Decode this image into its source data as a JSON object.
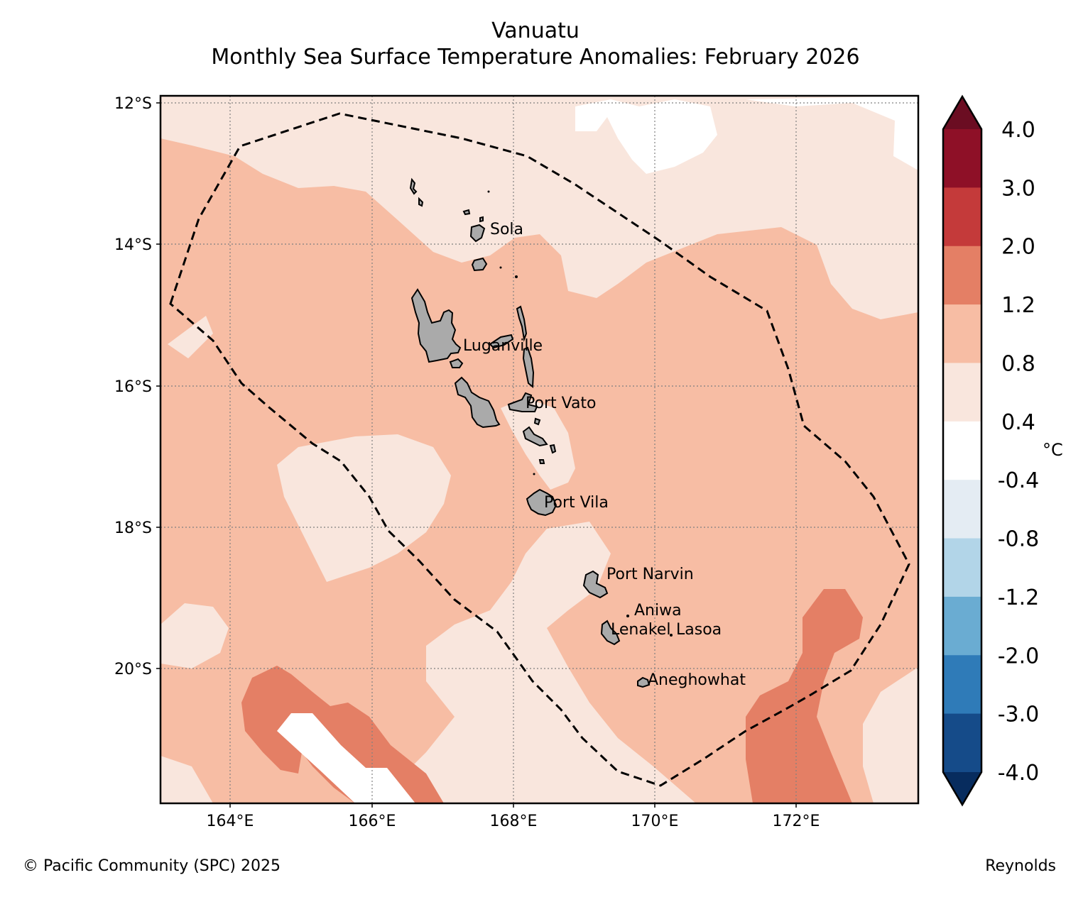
{
  "title": "Vanuatu",
  "subtitle": "Monthly Sea Surface Temperature Anomalies: February 2026",
  "credit": "© Pacific Community (SPC) 2025",
  "source": "Reynolds",
  "axes": {
    "lat_ticks": [
      "12°S",
      "14°S",
      "16°S",
      "18°S",
      "20°S"
    ],
    "lon_ticks": [
      "164°E",
      "166°E",
      "168°E",
      "170°E",
      "172°E"
    ]
  },
  "colorbar": {
    "unit": "°C",
    "labels": [
      "4.0",
      "3.0",
      "2.0",
      "1.2",
      "0.8",
      "0.4",
      "-0.4",
      "-0.8",
      "-1.2",
      "-2.0",
      "-3.0",
      "-4.0"
    ],
    "colors": [
      "#6b0d22",
      "#8e1027",
      "#c43a3a",
      "#e47f65",
      "#f7bda4",
      "#f9e6dd",
      "#ffffff",
      "#e4ecf3",
      "#b2d5e8",
      "#6aacd2",
      "#2f7bb8",
      "#154b89",
      "#072c5e"
    ]
  },
  "places": [
    "Sola",
    "Luganville",
    "Port Vato",
    "Port Vila",
    "Port Narvin",
    "Aniwa",
    "Lenakel",
    "Lasoa",
    "Aneghowhat"
  ],
  "legend_colors": {
    "land": "#aaaaaa",
    "boundary": "#000000",
    "grid": "#808080"
  }
}
